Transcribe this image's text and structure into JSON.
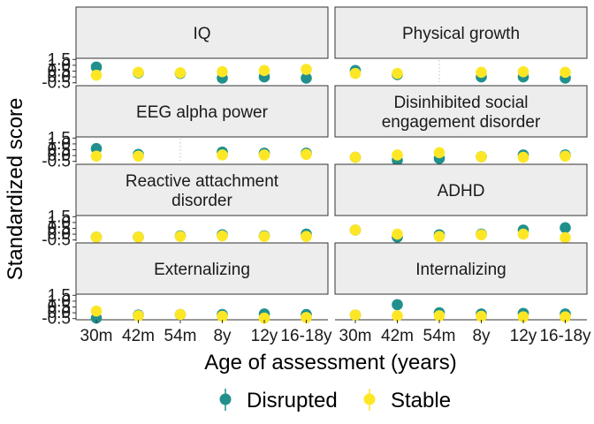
{
  "chart_data": {
    "type": "scatter",
    "ylabel": "Standardized score",
    "xlabel": "Age of assessment (years)",
    "x_categories": [
      "30m",
      "42m",
      "54m",
      "8y",
      "12y",
      "16-18y"
    ],
    "y_ticks": [
      "-0.5",
      "0.0",
      "0.5",
      "1.0",
      "1.5"
    ],
    "ylim": [
      -0.6,
      1.6
    ],
    "legend": {
      "position": "bottom"
    },
    "series": [
      {
        "name": "Disrupted",
        "color": "#21908c"
      },
      {
        "name": "Stable",
        "color": "#fde725"
      }
    ],
    "panels": [
      {
        "title": "IQ",
        "disrupted": [
          0.85,
          0.35,
          0.3,
          -0.1,
          0.0,
          -0.1
        ],
        "stable": [
          0.15,
          0.4,
          0.35,
          0.45,
          0.55,
          0.65
        ]
      },
      {
        "title": "Physical growth",
        "disrupted": [
          0.55,
          0.2,
          null,
          0.0,
          0.0,
          -0.1
        ],
        "stable": [
          0.3,
          0.3,
          null,
          0.4,
          0.45,
          0.4
        ]
      },
      {
        "title": "EEG alpha power",
        "disrupted": [
          0.6,
          0.1,
          null,
          0.3,
          0.2,
          0.2
        ],
        "stable": [
          -0.05,
          -0.05,
          null,
          0.05,
          0.05,
          0.1
        ]
      },
      {
        "title": "Disinhibited social engagement disorder",
        "title_lines": [
          "Disinhibited social",
          "engagement disorder"
        ],
        "disrupted": [
          -0.15,
          -0.4,
          -0.25,
          -0.1,
          0.05,
          0.05
        ],
        "stable": [
          -0.15,
          0.05,
          0.25,
          -0.1,
          -0.15,
          -0.05
        ]
      },
      {
        "title": "Reactive attachment disorder",
        "title_lines": [
          "Reactive attachment",
          "disorder"
        ],
        "disrupted": [
          -0.25,
          -0.25,
          -0.15,
          -0.05,
          -0.15,
          0.0
        ],
        "stable": [
          -0.25,
          -0.25,
          -0.2,
          -0.15,
          -0.2,
          -0.2
        ]
      },
      {
        "title": "ADHD",
        "disrupted": [
          0.35,
          -0.25,
          -0.05,
          0.0,
          0.35,
          0.55
        ],
        "stable": [
          0.35,
          0.0,
          -0.2,
          -0.05,
          0.0,
          -0.3
        ]
      },
      {
        "title": "Externalizing",
        "disrupted": [
          -0.45,
          -0.2,
          -0.15,
          -0.15,
          -0.1,
          -0.15
        ],
        "stable": [
          0.15,
          -0.25,
          -0.15,
          -0.3,
          -0.45,
          -0.4
        ]
      },
      {
        "title": "Internalizing",
        "disrupted": [
          -0.2,
          0.7,
          0.0,
          -0.1,
          -0.05,
          -0.1
        ],
        "stable": [
          -0.2,
          -0.25,
          -0.25,
          -0.3,
          -0.35,
          -0.35
        ]
      }
    ]
  }
}
